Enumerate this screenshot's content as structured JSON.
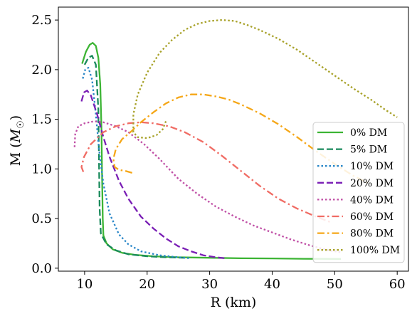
{
  "chart_data": {
    "type": "line",
    "title": "",
    "xlabel": "R (km)",
    "ylabel": "M (M☉)",
    "ylabel_main": "M (",
    "ylabel_unit": "M",
    "ylabel_sub": "☉",
    "ylabel_close": ")",
    "xlim": [
      5.8,
      61.8
    ],
    "ylim": [
      -0.03,
      2.63
    ],
    "xticks": [
      10,
      20,
      30,
      40,
      50,
      60
    ],
    "yticks": [
      0.0,
      0.5,
      1.0,
      1.5,
      2.0,
      2.5
    ],
    "xtick_labels": [
      "10",
      "20",
      "30",
      "40",
      "50",
      "60"
    ],
    "ytick_labels": [
      "0.0",
      "0.5",
      "1.0",
      "1.5",
      "2.0",
      "2.5"
    ],
    "grid": false,
    "legend_position": "lower-right",
    "series": [
      {
        "name": "0% DM",
        "color": "#3cb434",
        "dash": "solid",
        "points": [
          [
            9.6,
            2.06
          ],
          [
            10.2,
            2.18
          ],
          [
            10.8,
            2.25
          ],
          [
            11.3,
            2.27
          ],
          [
            11.8,
            2.24
          ],
          [
            12.2,
            2.12
          ],
          [
            12.5,
            1.85
          ],
          [
            12.7,
            1.4
          ],
          [
            12.8,
            0.9
          ],
          [
            12.9,
            0.5
          ],
          [
            13.0,
            0.33
          ],
          [
            13.5,
            0.25
          ],
          [
            14.5,
            0.19
          ],
          [
            16,
            0.155
          ],
          [
            18,
            0.135
          ],
          [
            21,
            0.12
          ],
          [
            25,
            0.11
          ],
          [
            30,
            0.105
          ],
          [
            35,
            0.1
          ],
          [
            40,
            0.098
          ],
          [
            45,
            0.095
          ],
          [
            51,
            0.093
          ]
        ]
      },
      {
        "name": "5% DM",
        "color": "#1a8a5c",
        "dash": "dashed",
        "points": [
          [
            10.0,
            2.05
          ],
          [
            10.6,
            2.12
          ],
          [
            11.2,
            2.14
          ],
          [
            11.8,
            2.05
          ],
          [
            12.2,
            1.6
          ],
          [
            12.3,
            1.1
          ],
          [
            12.4,
            0.6
          ],
          [
            12.6,
            0.35
          ],
          [
            13.5,
            0.24
          ],
          [
            15,
            0.18
          ],
          [
            17,
            0.14
          ],
          [
            20,
            0.12
          ],
          [
            23,
            0.11
          ],
          [
            26,
            0.105
          ]
        ]
      },
      {
        "name": "10% DM",
        "color": "#2a87c8",
        "dash": "dotted",
        "points": [
          [
            9.7,
            1.91
          ],
          [
            10.1,
            2.0
          ],
          [
            10.6,
            2.02
          ],
          [
            11.2,
            1.9
          ],
          [
            11.8,
            1.55
          ],
          [
            12.3,
            1.2
          ],
          [
            13.0,
            0.85
          ],
          [
            14,
            0.55
          ],
          [
            15.5,
            0.34
          ],
          [
            17,
            0.24
          ],
          [
            19,
            0.17
          ],
          [
            22,
            0.13
          ],
          [
            25,
            0.11
          ],
          [
            27,
            0.1
          ]
        ]
      },
      {
        "name": "20% DM",
        "color": "#7a1fb5",
        "dash": "dashed",
        "points": [
          [
            9.5,
            1.68
          ],
          [
            9.9,
            1.77
          ],
          [
            10.4,
            1.79
          ],
          [
            11.0,
            1.74
          ],
          [
            12.0,
            1.55
          ],
          [
            13.0,
            1.32
          ],
          [
            14,
            1.12
          ],
          [
            15.5,
            0.88
          ],
          [
            17,
            0.7
          ],
          [
            19,
            0.52
          ],
          [
            21,
            0.4
          ],
          [
            23,
            0.3
          ],
          [
            25,
            0.22
          ],
          [
            27,
            0.17
          ],
          [
            29,
            0.13
          ],
          [
            31,
            0.11
          ],
          [
            32.5,
            0.1
          ]
        ]
      },
      {
        "name": "40% DM",
        "color": "#c04fa6",
        "dash": "dotted",
        "points": [
          [
            8.4,
            1.22
          ],
          [
            8.5,
            1.35
          ],
          [
            9.0,
            1.43
          ],
          [
            10,
            1.46
          ],
          [
            11.5,
            1.48
          ],
          [
            13,
            1.47
          ],
          [
            15,
            1.43
          ],
          [
            17,
            1.37
          ],
          [
            19.5,
            1.25
          ],
          [
            22,
            1.1
          ],
          [
            25,
            0.9
          ],
          [
            28,
            0.75
          ],
          [
            31,
            0.62
          ],
          [
            34,
            0.52
          ],
          [
            37,
            0.43
          ],
          [
            40,
            0.36
          ],
          [
            43,
            0.29
          ],
          [
            46,
            0.23
          ],
          [
            49,
            0.18
          ],
          [
            51,
            0.16
          ]
        ]
      },
      {
        "name": "60% DM",
        "color": "#f06c64",
        "dash": "dashdot",
        "points": [
          [
            9.8,
            0.97
          ],
          [
            9.5,
            1.02
          ],
          [
            9.9,
            1.12
          ],
          [
            11.0,
            1.25
          ],
          [
            13.0,
            1.37
          ],
          [
            15,
            1.43
          ],
          [
            17,
            1.46
          ],
          [
            19,
            1.47
          ],
          [
            21,
            1.46
          ],
          [
            23.5,
            1.43
          ],
          [
            26,
            1.37
          ],
          [
            29,
            1.27
          ],
          [
            32,
            1.13
          ],
          [
            35,
            0.98
          ],
          [
            38,
            0.83
          ],
          [
            41,
            0.7
          ],
          [
            44,
            0.6
          ],
          [
            47,
            0.52
          ],
          [
            49.5,
            0.46
          ]
        ]
      },
      {
        "name": "80% DM",
        "color": "#f5a718",
        "dash": "dashdot",
        "points": [
          [
            17.6,
            0.96
          ],
          [
            16.5,
            0.98
          ],
          [
            15.5,
            0.99
          ],
          [
            14.8,
            1.02
          ],
          [
            14.6,
            1.1
          ],
          [
            15,
            1.2
          ],
          [
            16,
            1.3
          ],
          [
            17.5,
            1.38
          ],
          [
            19,
            1.47
          ],
          [
            21,
            1.57
          ],
          [
            23,
            1.66
          ],
          [
            25,
            1.72
          ],
          [
            27,
            1.75
          ],
          [
            29,
            1.75
          ],
          [
            31,
            1.73
          ],
          [
            33,
            1.7
          ],
          [
            35,
            1.65
          ],
          [
            38,
            1.56
          ],
          [
            41,
            1.45
          ],
          [
            44,
            1.32
          ],
          [
            47,
            1.18
          ],
          [
            50,
            1.05
          ],
          [
            53,
            0.93
          ],
          [
            55.6,
            0.85
          ]
        ]
      },
      {
        "name": "100% DM",
        "color": "#a8a22a",
        "dash": "dotted",
        "points": [
          [
            23.0,
            1.48
          ],
          [
            22.5,
            1.4
          ],
          [
            21.5,
            1.34
          ],
          [
            20.0,
            1.31
          ],
          [
            18.5,
            1.32
          ],
          [
            17.8,
            1.37
          ],
          [
            17.8,
            1.55
          ],
          [
            18.5,
            1.75
          ],
          [
            20,
            1.97
          ],
          [
            22,
            2.17
          ],
          [
            24,
            2.3
          ],
          [
            26,
            2.4
          ],
          [
            28,
            2.46
          ],
          [
            30,
            2.49
          ],
          [
            32,
            2.5
          ],
          [
            34,
            2.49
          ],
          [
            36,
            2.45
          ],
          [
            38,
            2.4
          ],
          [
            41,
            2.31
          ],
          [
            44,
            2.2
          ],
          [
            47,
            2.07
          ],
          [
            50,
            1.94
          ],
          [
            53,
            1.81
          ],
          [
            56,
            1.69
          ],
          [
            58,
            1.6
          ],
          [
            60,
            1.52
          ]
        ]
      }
    ]
  }
}
